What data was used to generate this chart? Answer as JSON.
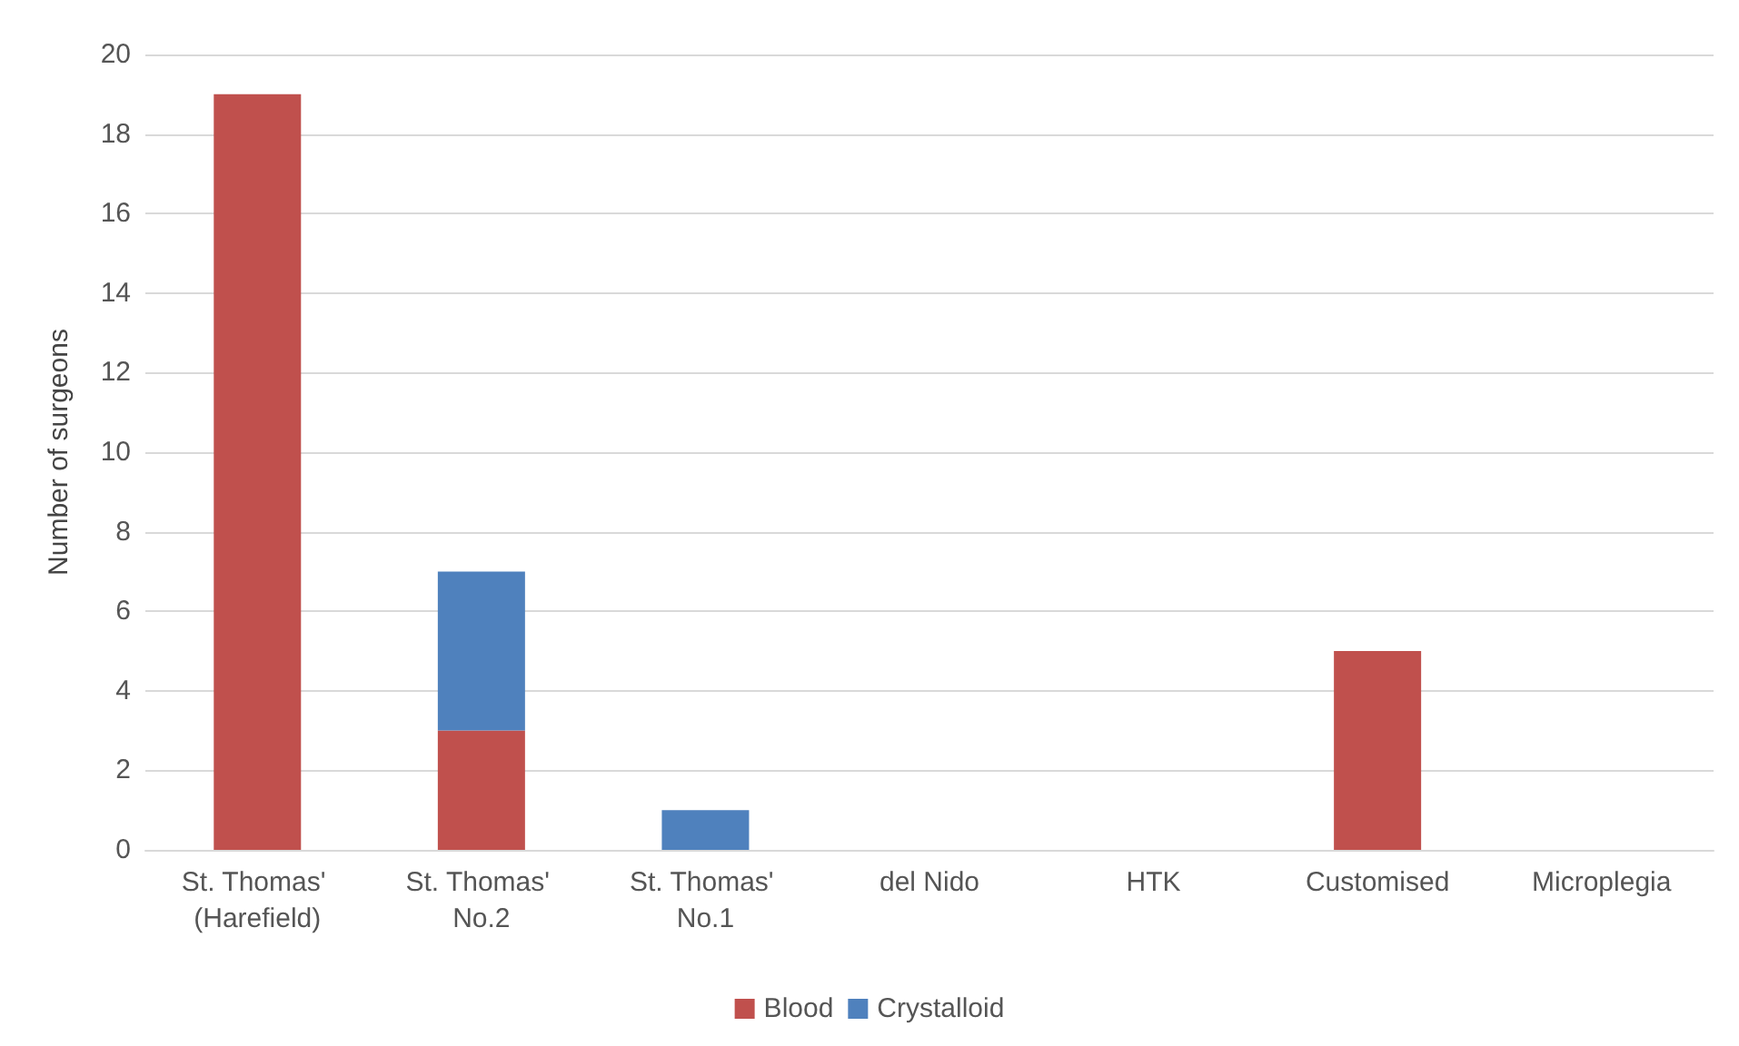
{
  "chart_data": {
    "type": "bar",
    "stacked": true,
    "ylabel": "Number of surgeons",
    "categories": [
      "St. Thomas' (Harefield)",
      "St. Thomas' No.2",
      "St. Thomas' No.1",
      "del Nido",
      "HTK",
      "Customised",
      "Microplegia"
    ],
    "series": [
      {
        "name": "Blood",
        "color": "#c0504d",
        "values": [
          19,
          3,
          0,
          0,
          0,
          5,
          0
        ]
      },
      {
        "name": "Crystalloid",
        "color": "#4f81bd",
        "values": [
          0,
          4,
          1,
          0,
          0,
          0,
          0
        ]
      }
    ],
    "ylim": [
      0,
      20
    ],
    "yticks": [
      0,
      2,
      4,
      6,
      8,
      10,
      12,
      14,
      16,
      18,
      20
    ],
    "grid": "y",
    "legend": "bottom"
  }
}
